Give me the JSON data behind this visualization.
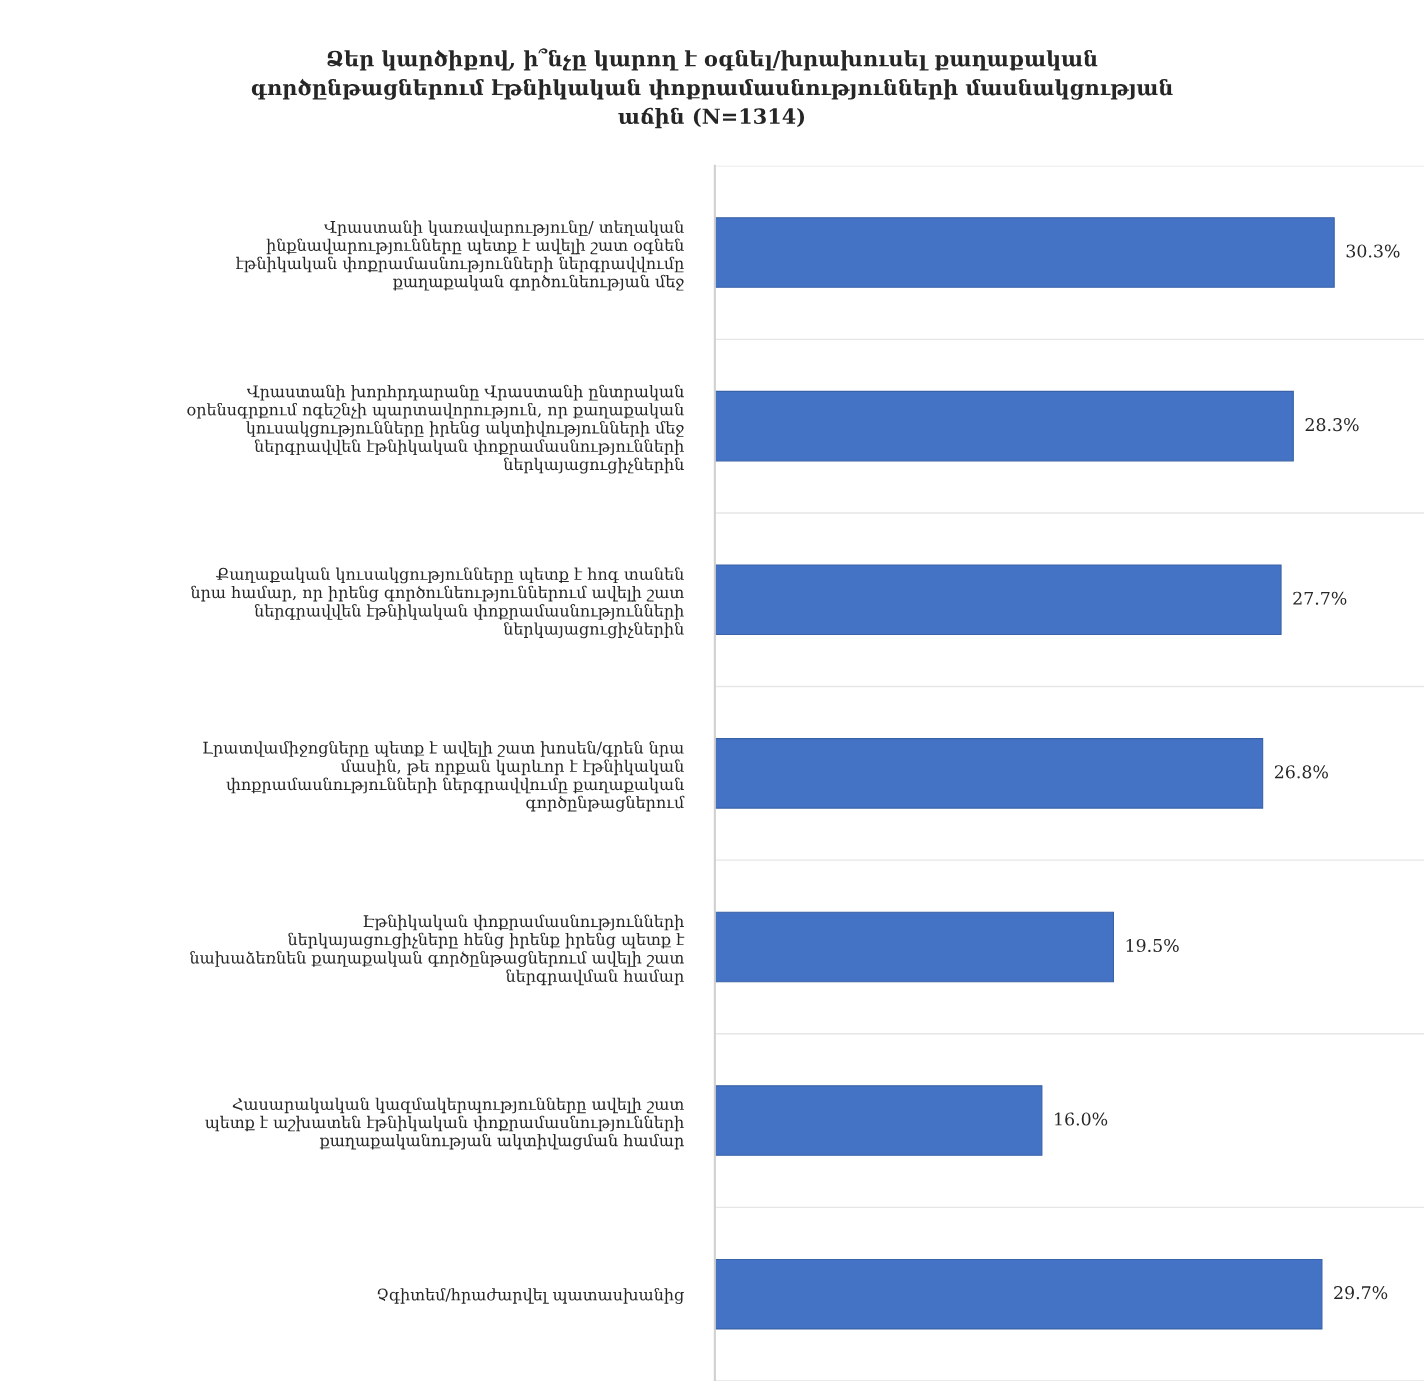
{
  "chart_data": {
    "type": "bar",
    "orientation": "horizontal",
    "title": "Ձեր կարծիքով, ի՞նչը կարող է օգնել/խրախուսել քաղաքական\nգործընթացներում էթնիկական փոքրամասնությունների մասնակցության\nաճին (N=1314)",
    "categories": [
      "Վրաստանի կառավարությունը/ տեղական\nինքնավարությունները պետք է ավելի շատ օգնեն\nէթնիկական փոքրամասնությունների ներգրավվումը\nքաղաքական գործունեության մեջ",
      "Վրաստանի խորհրդարանը Վրաստանի ընտրական\nօրենսգրքում ոգեշնչի պարտավորություն, որ քաղաքական\nկուսակցությունները իրենց ակտիվությունների մեջ\nներգրավվեն էթնիկական փոքրամասնությունների\nներկայացուցիչներին",
      "Քաղաքական կուսակցությունները պետք է հոգ տանեն\nնրա համար, որ իրենց գործունեություններում ավելի շատ\nներգրավվեն էթնիկական փոքրամասնությունների\nներկայացուցիչներին",
      "Լրատվամիջոցները պետք է ավելի շատ խոսեն/գրեն նրա\nմասին, թե որքան կարևոր է էթնիկական\nփոքրամասնությունների ներգրավվումը քաղաքական\nգործընթացներում",
      "Էթնիկական փոքրամասնությունների\nներկայացուցիչները հենց իրենք իրենց պետք է\nնախաձեռնեն քաղաքական գործընթացներում ավելի շատ\nներգրավման համար",
      "Հասարակական կազմակերպությունները ավելի շատ\nպետք է աշխատեն էթնիկական փոքրամասնությունների\nքաղաքականության ակտիվացման համար",
      "Չգիտեմ/հրաժարվել պատասխանից"
    ],
    "values": [
      30.3,
      28.3,
      27.7,
      26.8,
      19.5,
      16.0,
      29.7
    ],
    "value_labels": [
      "30.3%",
      "28.3%",
      "27.7%",
      "26.8%",
      "19.5%",
      "16.0%",
      "29.7%"
    ],
    "color": "#4472c4",
    "grid": "y",
    "legend": false
  }
}
